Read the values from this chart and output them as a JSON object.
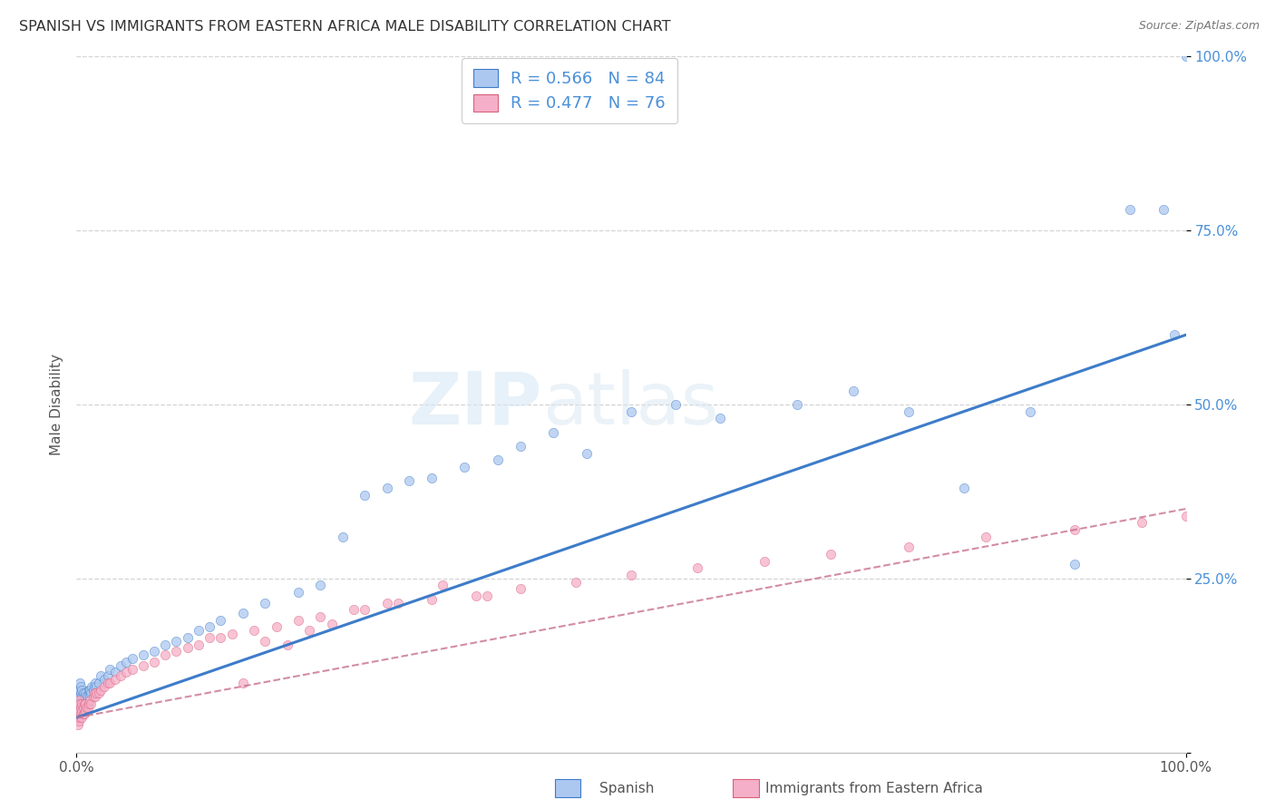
{
  "title": "SPANISH VS IMMIGRANTS FROM EASTERN AFRICA MALE DISABILITY CORRELATION CHART",
  "source": "Source: ZipAtlas.com",
  "ylabel": "Male Disability",
  "xlim": [
    0.0,
    1.0
  ],
  "ylim": [
    0.0,
    1.0
  ],
  "legend_r": [
    "R = 0.566",
    "R = 0.477"
  ],
  "legend_n": [
    "N = 84",
    "N = 76"
  ],
  "series1_color": "#adc8f0",
  "series2_color": "#f5afc8",
  "line1_color": "#3d7cc9",
  "line2_color": "#d9607a",
  "line2_dash_color": "#c87090",
  "watermark_text": "ZIPatlas",
  "background_color": "#ffffff",
  "grid_color": "#d0d0d0",
  "title_color": "#333333",
  "tick_color": "#4a90d9",
  "bottom_label1": "Spanish",
  "bottom_label2": "Immigrants from Eastern Africa",
  "s1_x": [
    0.001,
    0.001,
    0.001,
    0.002,
    0.002,
    0.002,
    0.002,
    0.002,
    0.003,
    0.003,
    0.003,
    0.003,
    0.003,
    0.004,
    0.004,
    0.004,
    0.004,
    0.005,
    0.005,
    0.005,
    0.005,
    0.006,
    0.006,
    0.006,
    0.007,
    0.007,
    0.008,
    0.008,
    0.009,
    0.01,
    0.01,
    0.011,
    0.012,
    0.012,
    0.013,
    0.014,
    0.015,
    0.016,
    0.017,
    0.018,
    0.02,
    0.022,
    0.025,
    0.028,
    0.03,
    0.035,
    0.04,
    0.045,
    0.05,
    0.06,
    0.07,
    0.08,
    0.09,
    0.1,
    0.11,
    0.12,
    0.13,
    0.15,
    0.17,
    0.2,
    0.22,
    0.24,
    0.26,
    0.28,
    0.3,
    0.32,
    0.35,
    0.38,
    0.4,
    0.43,
    0.46,
    0.5,
    0.54,
    0.58,
    0.65,
    0.7,
    0.75,
    0.8,
    0.86,
    0.9,
    0.95,
    0.98,
    0.99,
    1.0
  ],
  "s1_y": [
    0.05,
    0.06,
    0.07,
    0.055,
    0.065,
    0.075,
    0.08,
    0.09,
    0.06,
    0.07,
    0.08,
    0.09,
    0.1,
    0.065,
    0.075,
    0.085,
    0.095,
    0.06,
    0.07,
    0.08,
    0.09,
    0.065,
    0.075,
    0.085,
    0.07,
    0.08,
    0.075,
    0.085,
    0.08,
    0.07,
    0.08,
    0.09,
    0.08,
    0.09,
    0.085,
    0.095,
    0.09,
    0.095,
    0.1,
    0.095,
    0.1,
    0.11,
    0.105,
    0.11,
    0.12,
    0.115,
    0.125,
    0.13,
    0.135,
    0.14,
    0.145,
    0.155,
    0.16,
    0.165,
    0.175,
    0.18,
    0.19,
    0.2,
    0.215,
    0.23,
    0.24,
    0.31,
    0.37,
    0.38,
    0.39,
    0.395,
    0.41,
    0.42,
    0.44,
    0.46,
    0.43,
    0.49,
    0.5,
    0.48,
    0.5,
    0.52,
    0.49,
    0.38,
    0.49,
    0.27,
    0.78,
    0.78,
    0.6,
    1.0
  ],
  "s2_x": [
    0.001,
    0.001,
    0.001,
    0.002,
    0.002,
    0.002,
    0.002,
    0.003,
    0.003,
    0.003,
    0.004,
    0.004,
    0.005,
    0.005,
    0.005,
    0.006,
    0.006,
    0.007,
    0.007,
    0.008,
    0.008,
    0.009,
    0.01,
    0.011,
    0.012,
    0.013,
    0.015,
    0.016,
    0.017,
    0.018,
    0.02,
    0.022,
    0.025,
    0.028,
    0.03,
    0.035,
    0.04,
    0.045,
    0.05,
    0.06,
    0.07,
    0.08,
    0.09,
    0.1,
    0.11,
    0.12,
    0.14,
    0.16,
    0.18,
    0.2,
    0.22,
    0.25,
    0.28,
    0.32,
    0.36,
    0.4,
    0.45,
    0.5,
    0.56,
    0.62,
    0.68,
    0.75,
    0.82,
    0.9,
    0.96,
    1.0,
    0.13,
    0.15,
    0.17,
    0.19,
    0.21,
    0.23,
    0.26,
    0.29,
    0.33,
    0.37
  ],
  "s2_y": [
    0.04,
    0.05,
    0.06,
    0.045,
    0.055,
    0.065,
    0.075,
    0.05,
    0.06,
    0.07,
    0.055,
    0.065,
    0.05,
    0.06,
    0.07,
    0.055,
    0.065,
    0.055,
    0.07,
    0.06,
    0.07,
    0.065,
    0.065,
    0.07,
    0.075,
    0.07,
    0.08,
    0.085,
    0.08,
    0.085,
    0.085,
    0.09,
    0.095,
    0.1,
    0.1,
    0.105,
    0.11,
    0.115,
    0.12,
    0.125,
    0.13,
    0.14,
    0.145,
    0.15,
    0.155,
    0.165,
    0.17,
    0.175,
    0.18,
    0.19,
    0.195,
    0.205,
    0.215,
    0.22,
    0.225,
    0.235,
    0.245,
    0.255,
    0.265,
    0.275,
    0.285,
    0.295,
    0.31,
    0.32,
    0.33,
    0.34,
    0.165,
    0.1,
    0.16,
    0.155,
    0.175,
    0.185,
    0.205,
    0.215,
    0.24,
    0.225
  ]
}
